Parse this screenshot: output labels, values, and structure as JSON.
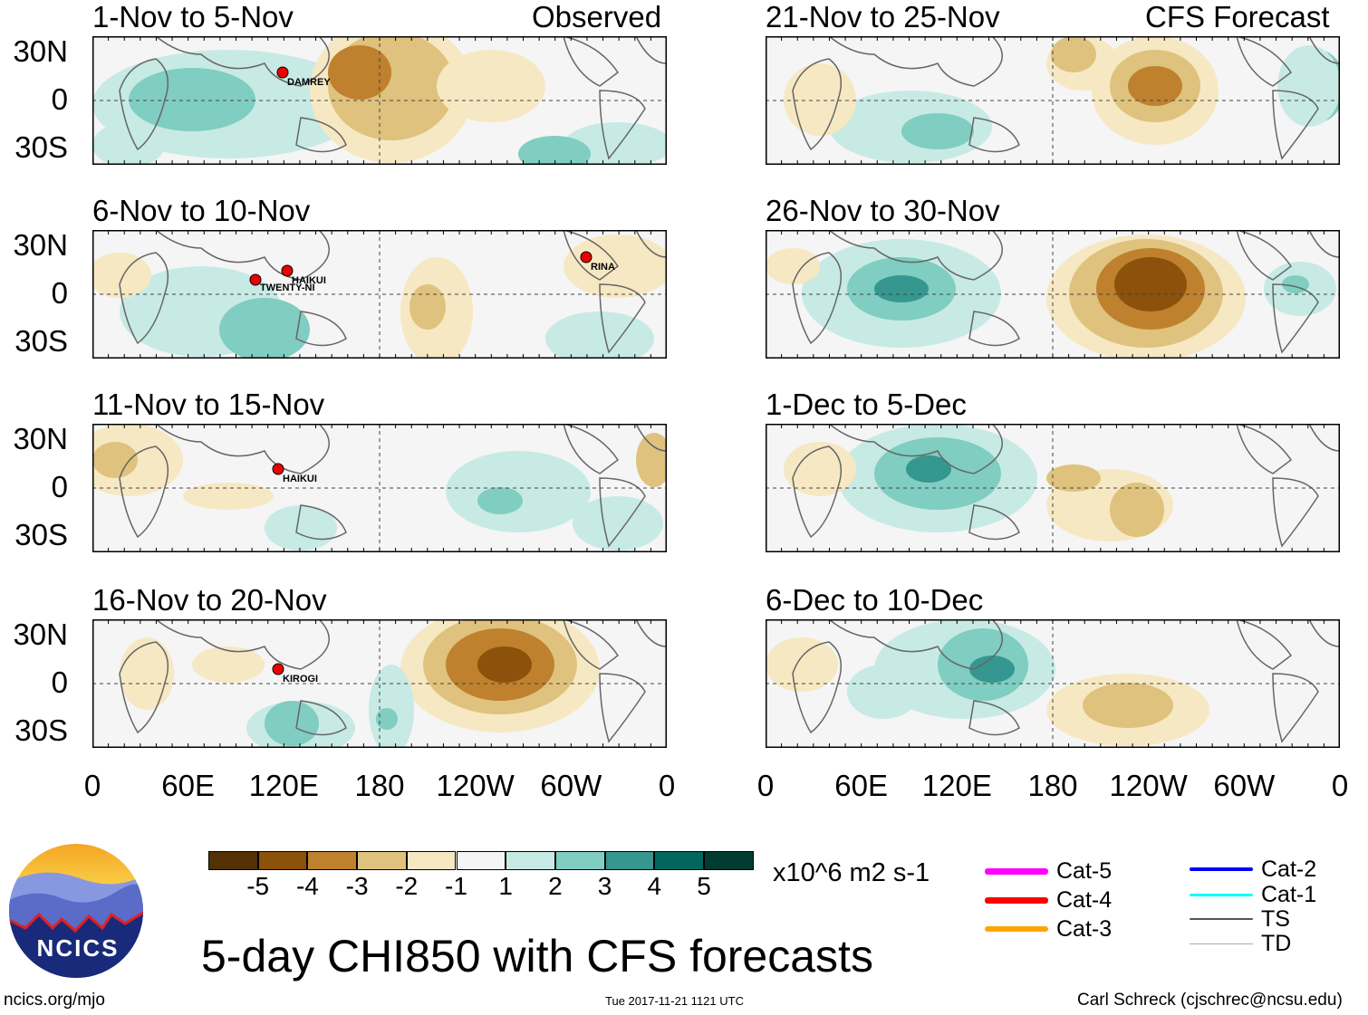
{
  "left_header": "Observed",
  "right_header": "CFS Forecast",
  "panels": [
    {
      "id": "p1",
      "title": "1-Nov to 5-Nov",
      "col": "left",
      "storms": [
        "DAMREY"
      ]
    },
    {
      "id": "p2",
      "title": "6-Nov to 10-Nov",
      "col": "left",
      "storms": [
        "RINA",
        "HAIKUI",
        "TWENTY-NI"
      ]
    },
    {
      "id": "p3",
      "title": "11-Nov to 15-Nov",
      "col": "left",
      "storms": [
        "HAIKUI"
      ]
    },
    {
      "id": "p4",
      "title": "16-Nov to 20-Nov",
      "col": "left",
      "storms": [
        "KIROGI"
      ]
    },
    {
      "id": "p5",
      "title": "21-Nov to 25-Nov",
      "col": "right",
      "storms": []
    },
    {
      "id": "p6",
      "title": "26-Nov to 30-Nov",
      "col": "right",
      "storms": []
    },
    {
      "id": "p7",
      "title": "1-Dec to 5-Dec",
      "col": "right",
      "storms": []
    },
    {
      "id": "p8",
      "title": "6-Dec to 10-Dec",
      "col": "right",
      "storms": []
    }
  ],
  "y_ticks": [
    "30N",
    "0",
    "30S"
  ],
  "x_ticks": [
    "0",
    "60E",
    "120E",
    "180",
    "120W",
    "60W",
    "0"
  ],
  "colorbar": {
    "colors": [
      "#543005",
      "#8c510a",
      "#bf812d",
      "#dfc27d",
      "#f6e8c3",
      "#f5f5f5",
      "#c7eae5",
      "#80cdc1",
      "#35978f",
      "#01665e",
      "#003c30"
    ],
    "ticks": [
      "-5",
      "-4",
      "-3",
      "-2",
      "-1",
      "1",
      "2",
      "3",
      "4",
      "5"
    ],
    "units": "x10^6 m2 s-1"
  },
  "legend": [
    {
      "label": "Cat-5",
      "color": "#ff00ff"
    },
    {
      "label": "Cat-4",
      "color": "#ff0000"
    },
    {
      "label": "Cat-3",
      "color": "#ffa500"
    },
    {
      "label": "Cat-2",
      "color": "#0000ff"
    },
    {
      "label": "Cat-1",
      "color": "#00ffff"
    },
    {
      "label": "TS",
      "color": "#555555"
    },
    {
      "label": "TD",
      "color": "#aaaaaa"
    }
  ],
  "title": "5-day CHI850 with CFS forecasts",
  "logo_text": "NCICS",
  "footer": {
    "url": "ncics.org/mjo",
    "timestamp": "Tue 2017-11-21 1121 UTC",
    "credit": "Carl Schreck (cjschrec@ncsu.edu)"
  },
  "chart_data": {
    "type": "heatmap",
    "title": "5-day CHI850 with CFS forecasts",
    "variable": "850-hPa velocity potential anomaly",
    "units": "x10^6 m2 s-1",
    "levels": [
      -5,
      -4,
      -3,
      -2,
      -1,
      1,
      2,
      3,
      4,
      5
    ],
    "xlim": [
      "0",
      "0"
    ],
    "x_ticks": [
      "0",
      "60E",
      "120E",
      "180",
      "120W",
      "60W",
      "0"
    ],
    "ylim": [
      "40S",
      "40N"
    ],
    "y_ticks": [
      "30N",
      "0",
      "30S"
    ],
    "observed_periods": [
      "1-Nov to 5-Nov",
      "6-Nov to 10-Nov",
      "11-Nov to 15-Nov",
      "16-Nov to 20-Nov"
    ],
    "forecast_periods": [
      "21-Nov to 25-Nov",
      "26-Nov to 30-Nov",
      "1-Dec to 5-Dec",
      "6-Dec to 10-Dec"
    ]
  }
}
